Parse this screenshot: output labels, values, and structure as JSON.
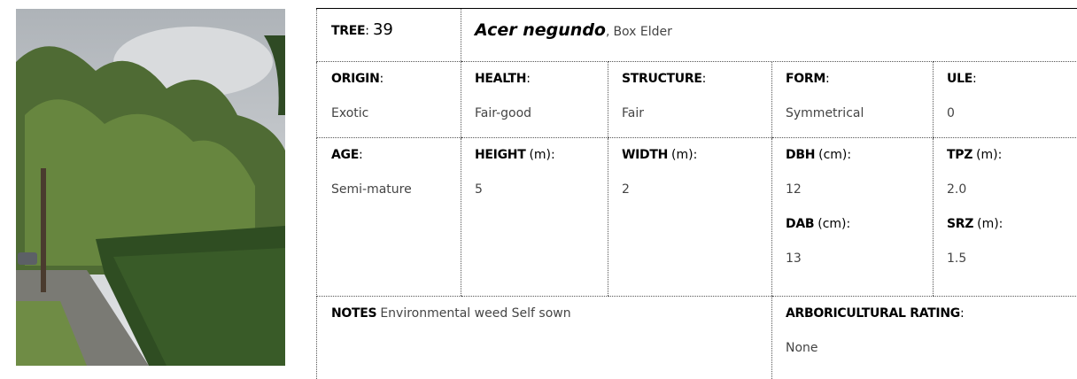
{
  "header": {
    "tree": {
      "label": "TREE",
      "suffix": ":",
      "value": 39
    },
    "species": {
      "scientific": "Acer negundo",
      "separator": ",",
      "common": "Box Elder"
    }
  },
  "fields": {
    "origin": {
      "label": "ORIGIN",
      "suffix": ":",
      "value": "Exotic"
    },
    "health": {
      "label": "HEALTH",
      "suffix": ":",
      "value": "Fair-good"
    },
    "structure": {
      "label": "STRUCTURE",
      "suffix": ":",
      "value": "Fair"
    },
    "form": {
      "label": "FORM",
      "suffix": ":",
      "value": "Symmetrical"
    },
    "ule": {
      "label": "ULE",
      "suffix": ":",
      "value": 0
    },
    "age": {
      "label": "AGE",
      "suffix": ":",
      "value": "Semi-mature"
    },
    "height": {
      "label": "HEIGHT",
      "suffix": "(m):",
      "value": 5
    },
    "width": {
      "label": "WIDTH",
      "suffix": "(m):",
      "value": 2
    },
    "dbh": {
      "label": "DBH",
      "suffix": "(cm):",
      "value": 12
    },
    "dab": {
      "label": "DAB",
      "suffix": "(cm):",
      "value": 13
    },
    "tpz": {
      "label": "TPZ",
      "suffix": "(m):",
      "value": {
        "value": 2,
        "label": "2.0"
      }
    },
    "srz": {
      "label": "SRZ",
      "suffix": "(m):",
      "value": 1.5
    }
  },
  "notes": {
    "label": "NOTES",
    "text": "Environmental weed Self sown"
  },
  "rating": {
    "label": "ARBORICULTURAL RATING",
    "suffix": ":",
    "value": "None"
  }
}
